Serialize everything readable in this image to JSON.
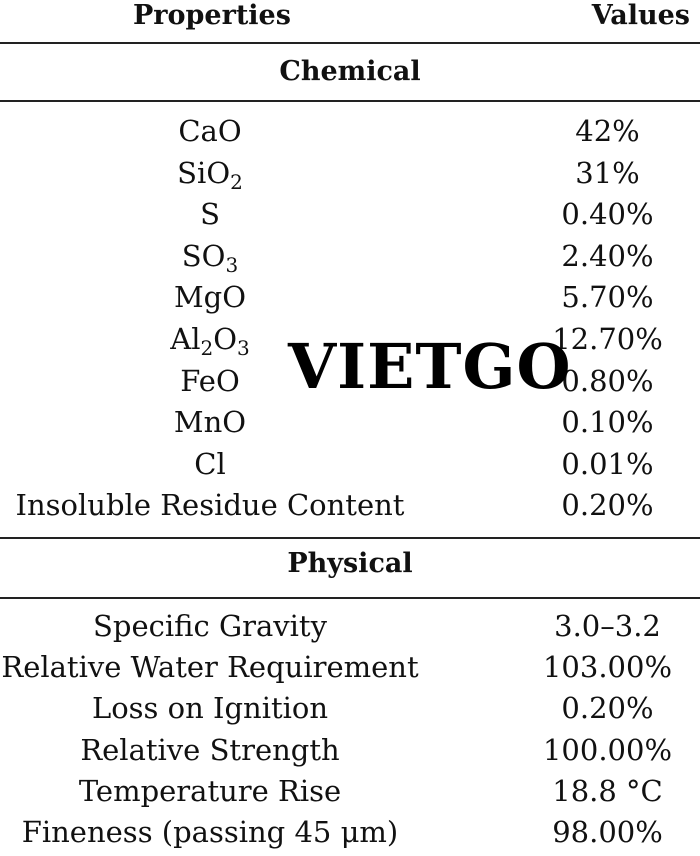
{
  "header": {
    "properties": "Properties",
    "values": "Values"
  },
  "sections": {
    "chemical": "Chemical",
    "physical": "Physical"
  },
  "chemical_rows": [
    {
      "base": "CaO",
      "value": "42%"
    },
    {
      "base": "SiO",
      "sub": "2",
      "value": "31%"
    },
    {
      "base": "S",
      "value": "0.40%"
    },
    {
      "base": "SO",
      "sub": "3",
      "value": "2.40%"
    },
    {
      "base": "MgO",
      "value": "5.70%"
    },
    {
      "base": "Al",
      "sub": "2",
      "base2": "O",
      "sub2": "3",
      "value": "12.70%"
    },
    {
      "base": "FeO",
      "value": "0.80%"
    },
    {
      "base": "MnO",
      "value": "0.10%"
    },
    {
      "base": "Cl",
      "value": "0.01%"
    },
    {
      "base": "Insoluble Residue Content",
      "value": "0.20%"
    }
  ],
  "physical_rows": [
    {
      "base": "Specific Gravity",
      "value": "3.0–3.2"
    },
    {
      "base": "Relative Water Requirement",
      "value": "103.00%"
    },
    {
      "base": "Loss on Ignition",
      "value": "0.20%"
    },
    {
      "base": "Relative Strength",
      "value": "100.00%"
    },
    {
      "base": "Temperature Rise",
      "value": "18.8 °C"
    },
    {
      "base": "Fineness (passing 45 μm)",
      "value": "98.00%"
    }
  ],
  "watermark": "VIETGO"
}
